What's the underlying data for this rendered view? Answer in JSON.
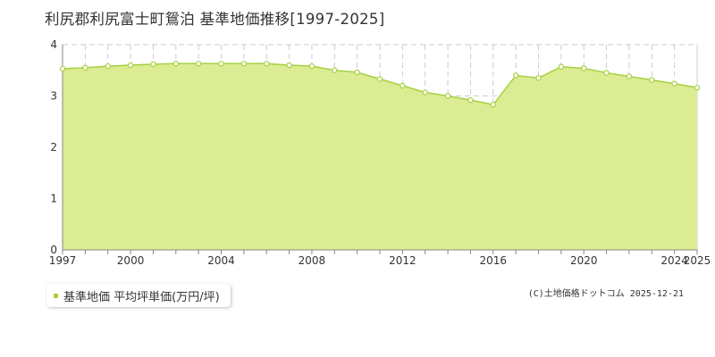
{
  "title": "利尻郡利尻富士町鴛泊 基準地価推移[1997-2025]",
  "legend_label": "基準地価 平均坪単価(万円/坪)",
  "credit": "(C)土地価格ドットコム 2025-12-21",
  "colors": {
    "fill": "#dbec93",
    "line": "#a6d13f",
    "marker_stroke": "#a6d13f",
    "marker_fill": "#ffffff",
    "legend_marker": "#a6d13f",
    "axis": "#888888",
    "grid": "#cccccc",
    "tick_text": "#333333"
  },
  "chart_data": {
    "type": "area",
    "x": [
      1997,
      1998,
      1999,
      2000,
      2001,
      2002,
      2003,
      2004,
      2005,
      2006,
      2007,
      2008,
      2009,
      2010,
      2011,
      2012,
      2013,
      2014,
      2015,
      2016,
      2017,
      2018,
      2019,
      2020,
      2021,
      2022,
      2023,
      2024,
      2025
    ],
    "series": [
      {
        "name": "基準地価 平均坪単価(万円/坪)",
        "values": [
          3.53,
          3.55,
          3.58,
          3.6,
          3.62,
          3.63,
          3.63,
          3.63,
          3.63,
          3.63,
          3.6,
          3.58,
          3.5,
          3.46,
          3.33,
          3.2,
          3.07,
          3.0,
          2.92,
          2.83,
          3.4,
          3.35,
          3.57,
          3.54,
          3.45,
          3.38,
          3.31,
          3.24,
          3.16
        ]
      }
    ],
    "xlim": [
      1997,
      2025
    ],
    "ylim": [
      0,
      4
    ],
    "x_tick_labels": [
      "1997",
      "2000",
      "2004",
      "2008",
      "2012",
      "2016",
      "2020",
      "2024",
      "2025"
    ],
    "y_tick_labels": [
      "0",
      "1",
      "2",
      "3",
      "4"
    ],
    "grid": true
  }
}
